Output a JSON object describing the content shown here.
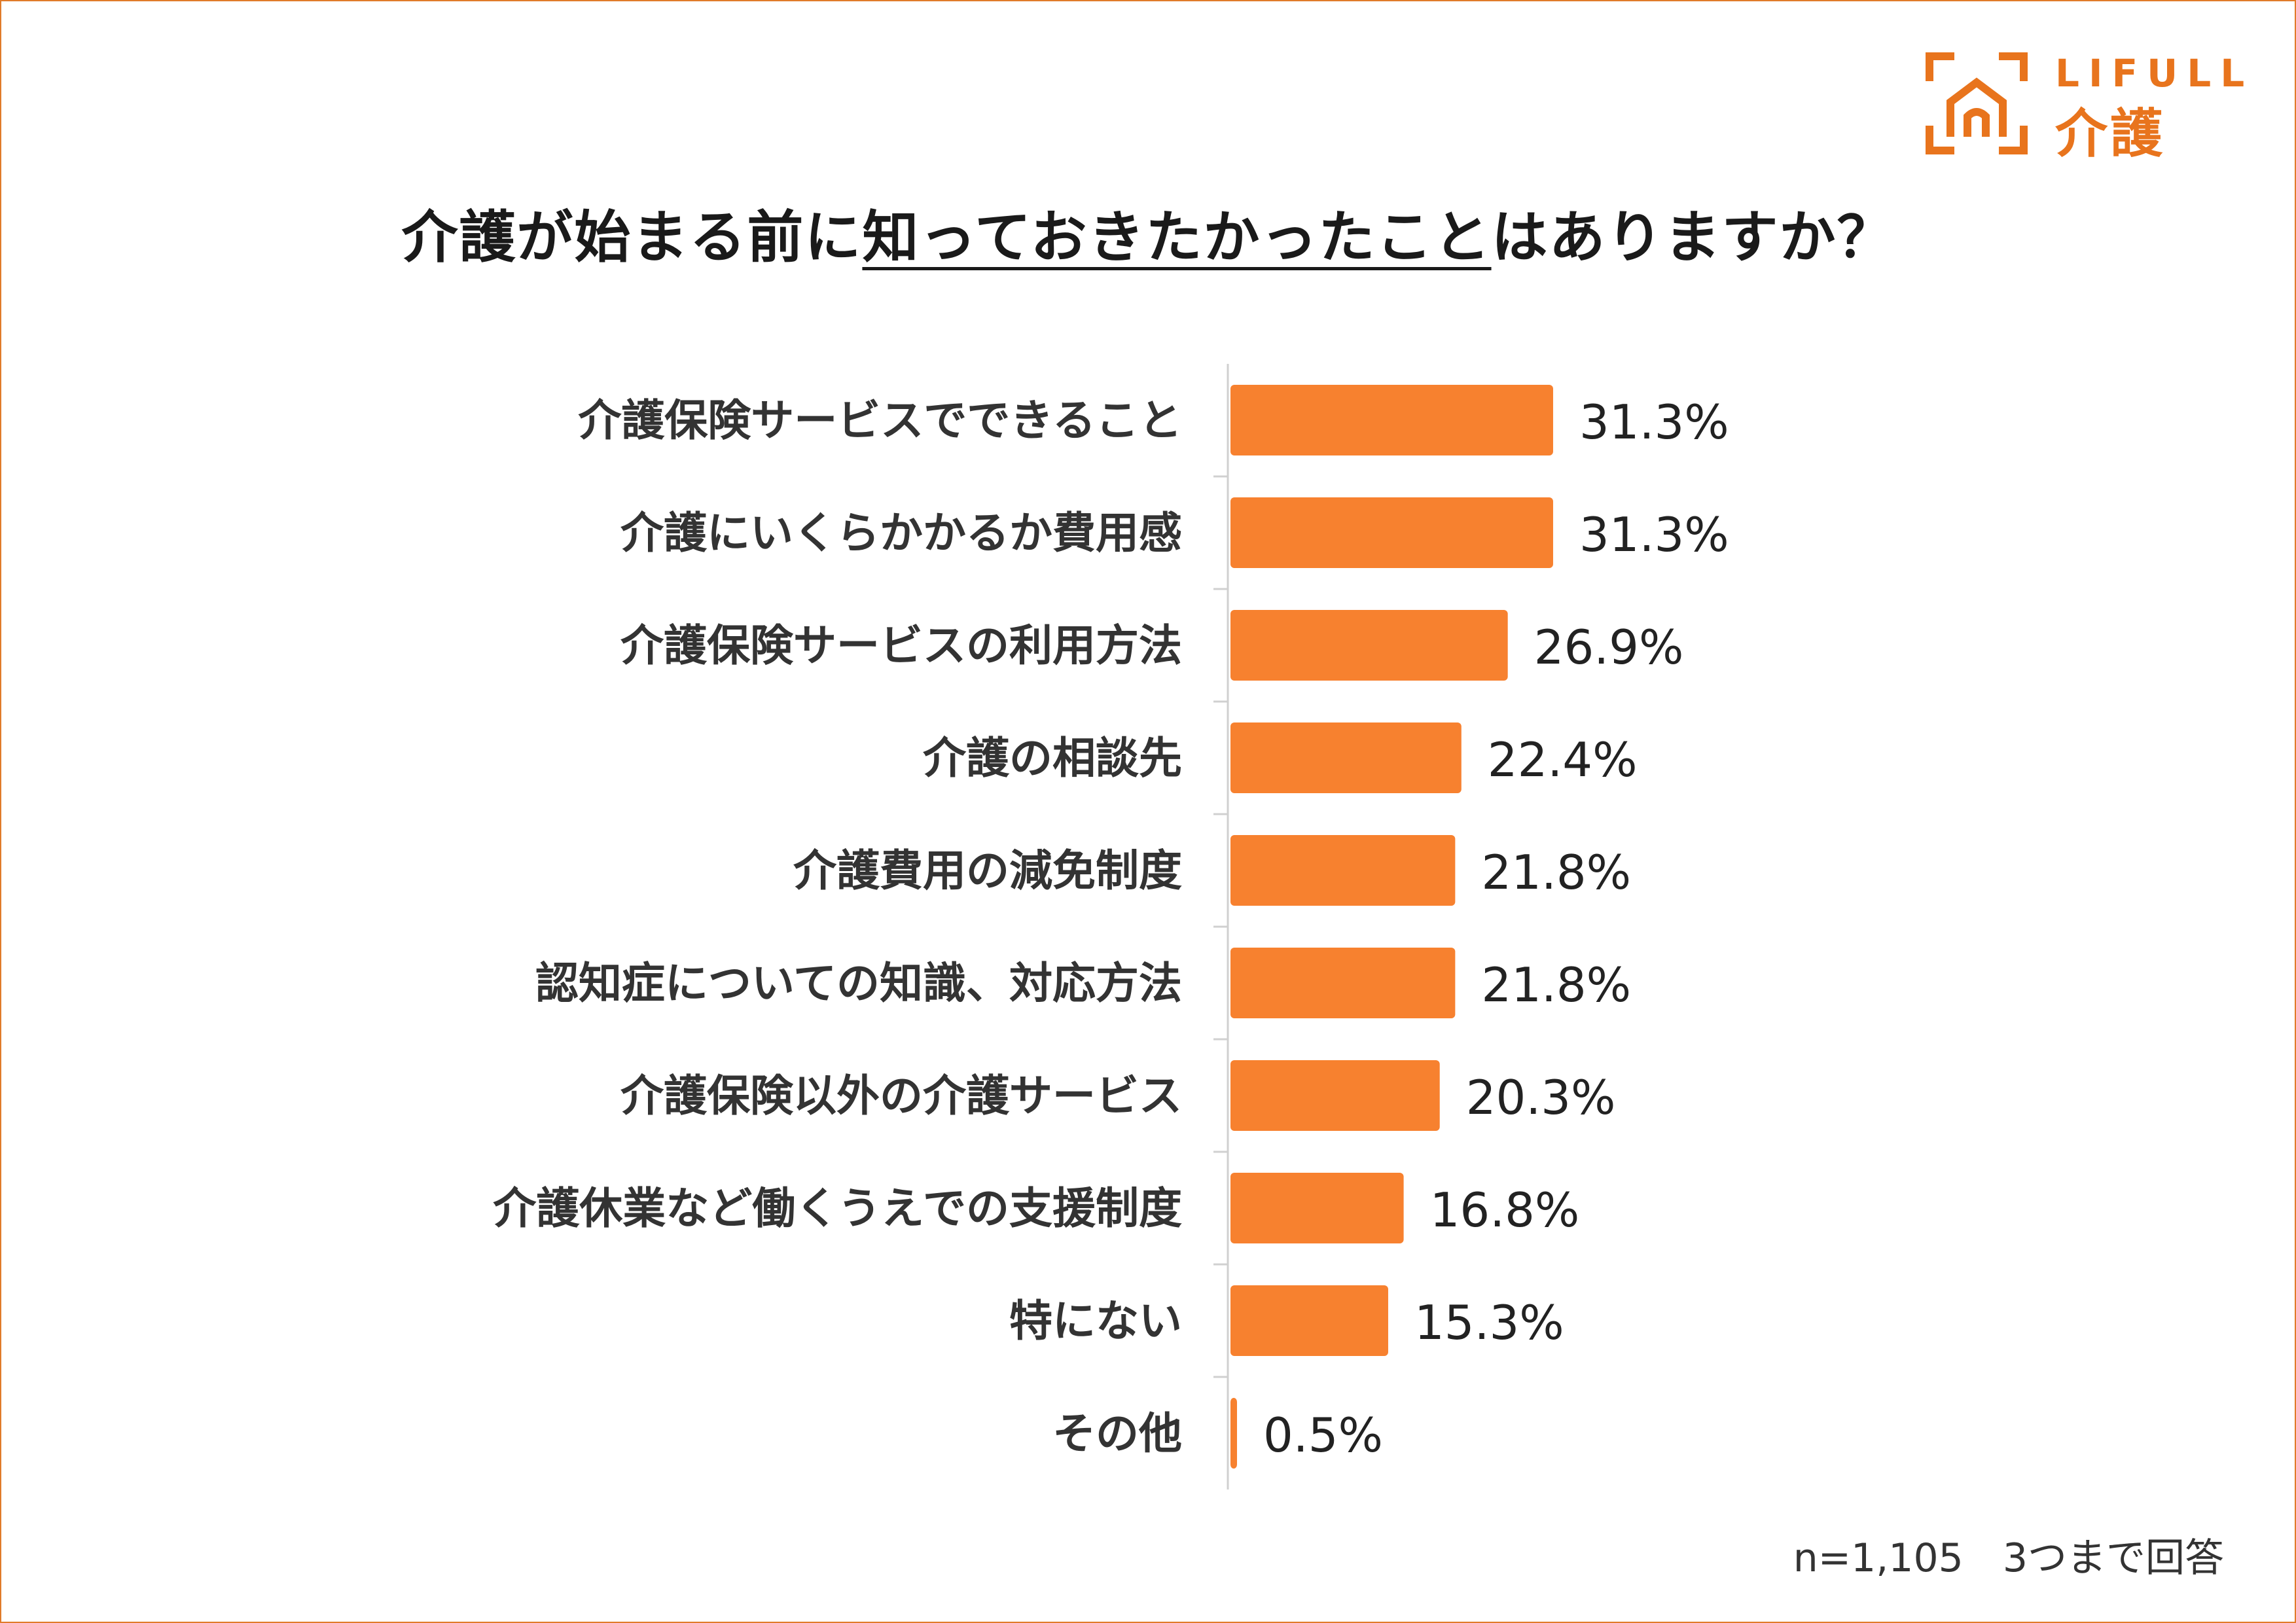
{
  "logo": {
    "brand": "LIFULL",
    "sub": "介護"
  },
  "title": {
    "prefix": "介護が始まる前に",
    "emphasis": "知っておきたかったこと",
    "suffix": "はありますか？"
  },
  "note": "n=1,105　3つまで回答",
  "colors": {
    "bar": "#f7812f",
    "accent": "#e8741d",
    "axis": "#d0d0d0"
  },
  "chart_data": {
    "type": "bar",
    "orientation": "horizontal",
    "categories": [
      "介護保険サービスでできること",
      "介護にいくらかかるか費用感",
      "介護保険サービスの利用方法",
      "介護の相談先",
      "介護費用の減免制度",
      "認知症についての知識、対応方法",
      "介護保険以外の介護サービス",
      "介護休業など働くうえでの支援制度",
      "特にない",
      "その他"
    ],
    "values": [
      31.3,
      31.3,
      26.9,
      22.4,
      21.8,
      21.8,
      20.3,
      16.8,
      15.3,
      0.5
    ],
    "value_labels": [
      "31.3%",
      "31.3%",
      "26.9%",
      "22.4%",
      "21.8%",
      "21.8%",
      "20.3%",
      "16.8%",
      "15.3%",
      "0.5%"
    ],
    "unit": "%",
    "xlim": [
      0,
      100
    ],
    "grid": false,
    "legend": "none"
  }
}
